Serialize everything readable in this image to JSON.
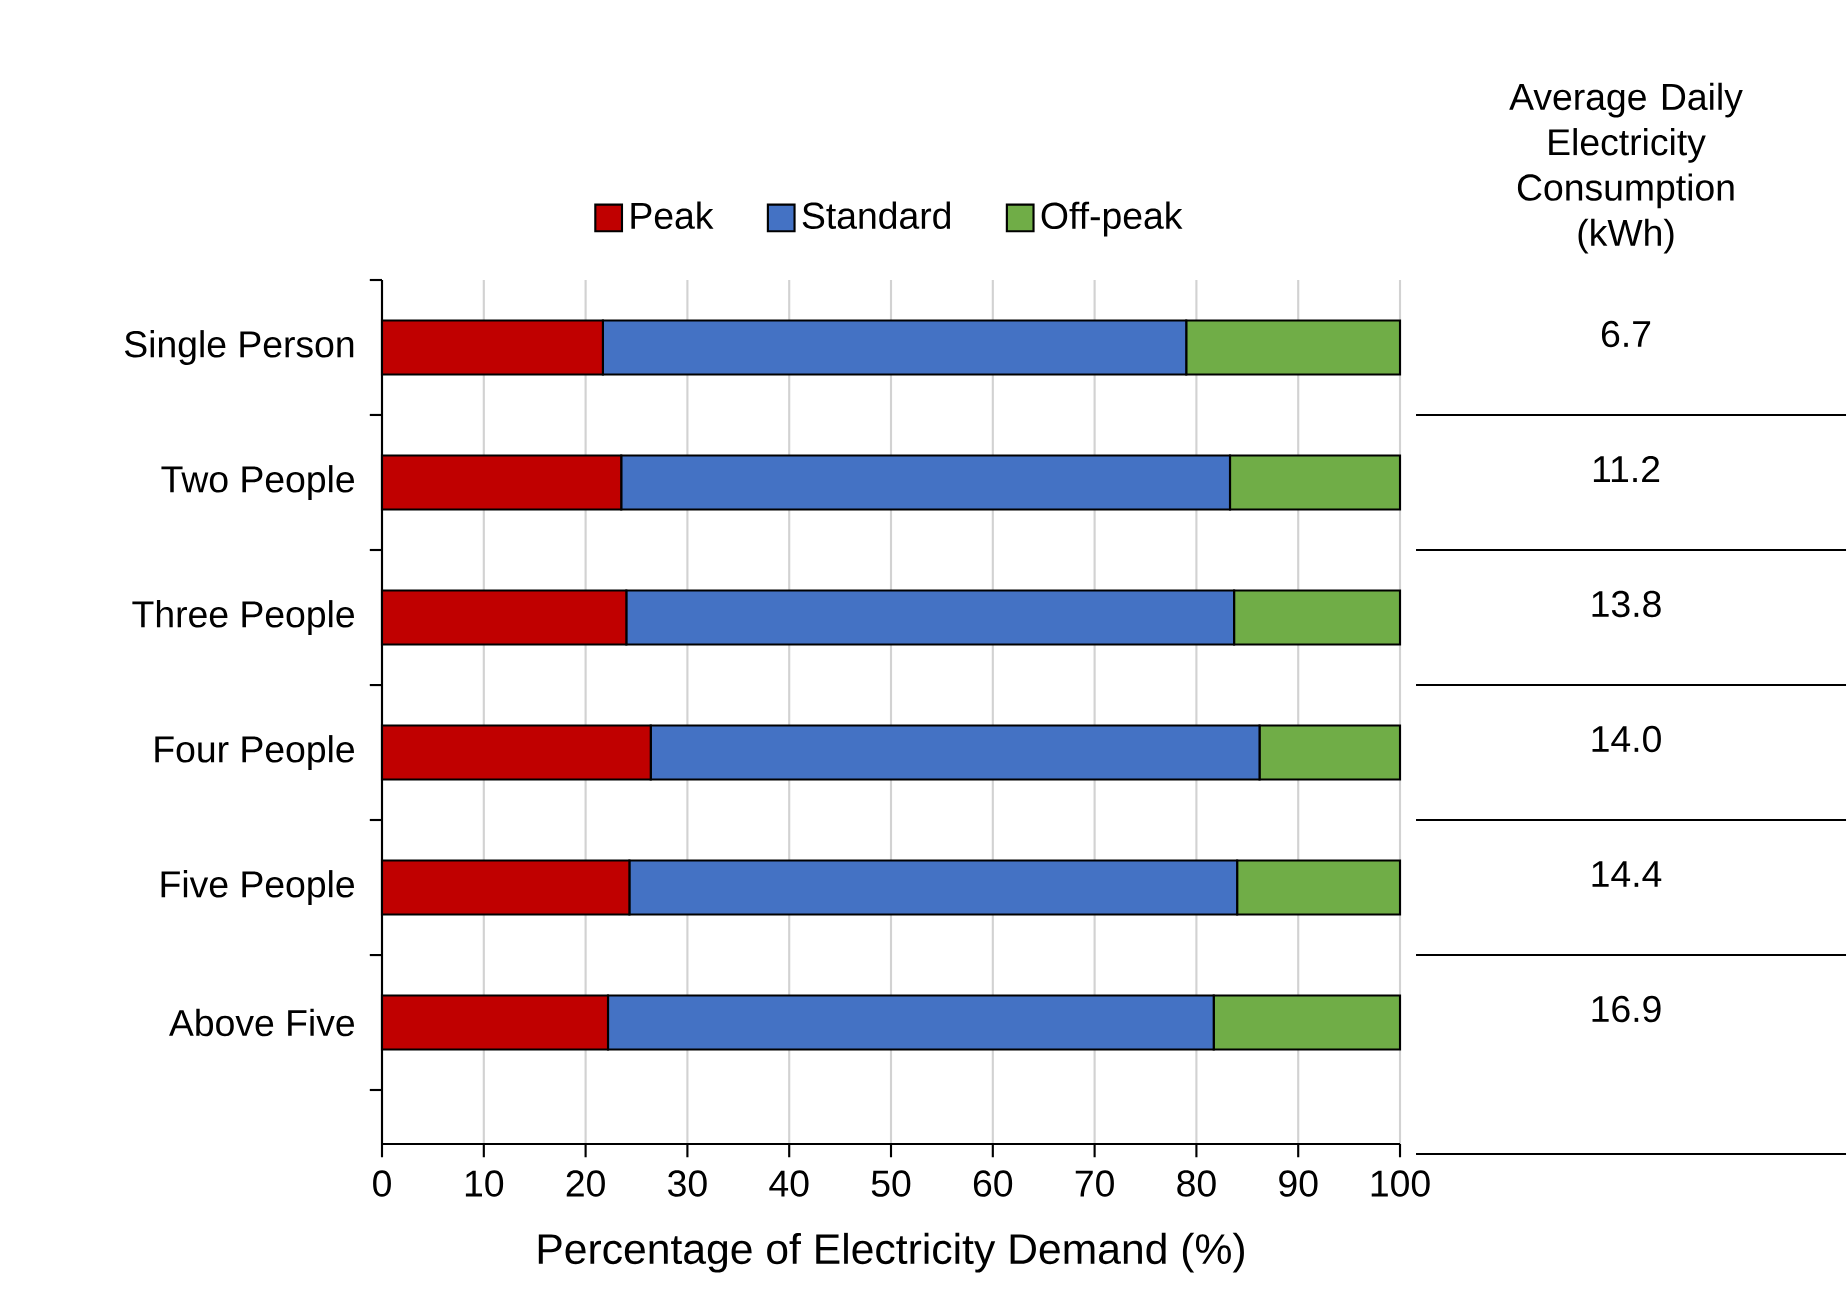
{
  "chart_data": {
    "type": "bar",
    "orientation": "horizontal",
    "stacked": true,
    "categories": [
      "Single Person",
      "Two People",
      "Three People",
      "Four People",
      "Five  People",
      "Above  Five"
    ],
    "series": [
      {
        "name": "Peak",
        "color": "#c00000",
        "values": [
          21.7,
          23.5,
          24.0,
          26.4,
          24.3,
          22.2
        ]
      },
      {
        "name": "Standard",
        "color": "#4472c4",
        "values": [
          57.3,
          59.8,
          59.7,
          59.8,
          59.7,
          59.5
        ]
      },
      {
        "name": "Off-peak",
        "color": "#70ad47",
        "values": [
          21.0,
          16.7,
          16.3,
          13.8,
          16.0,
          18.3
        ]
      }
    ],
    "xlim": [
      0,
      100
    ],
    "xticks": [
      0,
      10,
      20,
      30,
      40,
      50,
      60,
      70,
      80,
      90,
      100
    ],
    "xlabel": "Percentage of Electricity Demand (%)",
    "grid": "x",
    "legend": "top",
    "annotations": [
      "Average Daily Electricity Consumption (kWh)",
      "6.7",
      "11.2",
      "13.8",
      "14.0",
      "14.4",
      "16.9"
    ]
  }
}
